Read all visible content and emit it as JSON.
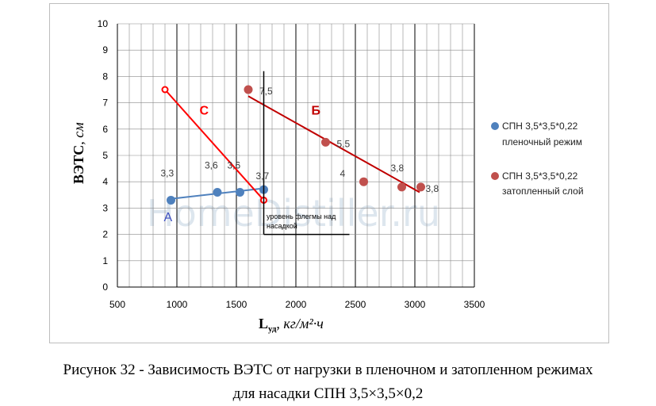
{
  "caption": {
    "line1": "Рисунок 32 - Зависимость ВЭТС от нагрузки в пленочном и затопленном режимах",
    "line2": "для насадки СПН 3,5×3,5×0,2"
  },
  "watermark": "HomeDistiller.ru",
  "chart_data": {
    "type": "scatter",
    "xlabel_main": "L",
    "xlabel_sub": "уд",
    "xlabel_unit": ", кг/м²·ч",
    "ylabel_main": "ВЭТС",
    "ylabel_unit": ", см",
    "xlim": [
      500,
      3500
    ],
    "ylim": [
      0,
      10
    ],
    "xticks": [
      500,
      1000,
      1500,
      2000,
      2500,
      3000,
      3500
    ],
    "yticks": [
      0,
      1,
      2,
      3,
      4,
      5,
      6,
      7,
      8,
      9,
      10
    ],
    "grid": true,
    "legend_position": "right",
    "series": [
      {
        "name_line1": "СПН 3,5*3,5*0,22",
        "name_line2": "пленочный режим",
        "color": "#4f81bd",
        "points": [
          {
            "x": 950,
            "y": 3.3,
            "label": "3,3"
          },
          {
            "x": 1340,
            "y": 3.6,
            "label": "3,6"
          },
          {
            "x": 1530,
            "y": 3.6,
            "label": "3,6"
          },
          {
            "x": 1730,
            "y": 3.7,
            "label": "3,7"
          }
        ]
      },
      {
        "name_line1": "СПН 3,5*3,5*0,22",
        "name_line2": "затопленный слой",
        "color": "#c0504d",
        "points": [
          {
            "x": 1600,
            "y": 7.5,
            "label": "7,5"
          },
          {
            "x": 2250,
            "y": 5.5,
            "label": "5,5"
          },
          {
            "x": 2570,
            "y": 4.0,
            "label": "4"
          },
          {
            "x": 2890,
            "y": 3.8,
            "label": "3,8"
          },
          {
            "x": 3050,
            "y": 3.8,
            "label": "3,8"
          }
        ]
      }
    ],
    "trendlines": [
      {
        "color": "#4f81bd",
        "x": [
          950,
          1730
        ],
        "y": [
          3.35,
          3.75
        ]
      },
      {
        "color": "#c00000",
        "x": [
          1600,
          3040
        ],
        "y": [
          7.25,
          3.6
        ]
      },
      {
        "color": "#ff0000",
        "x": [
          900,
          1730
        ],
        "y": [
          7.5,
          3.3
        ]
      }
    ],
    "annotations": [
      {
        "text": "А",
        "color": "#3d4fbf",
        "x": 890,
        "y": 2.5
      },
      {
        "text": "Б",
        "color": "#c00000",
        "x": 2130,
        "y": 6.55
      },
      {
        "text": "С",
        "color": "#ff0000",
        "x": 1190,
        "y": 6.55
      }
    ],
    "flegm_note": {
      "line1": "уровень флегмы над",
      "line2": "насадкой",
      "x0": 1730,
      "x1": 2450,
      "y_top": 8.2,
      "y_bottom": 2.0
    }
  }
}
